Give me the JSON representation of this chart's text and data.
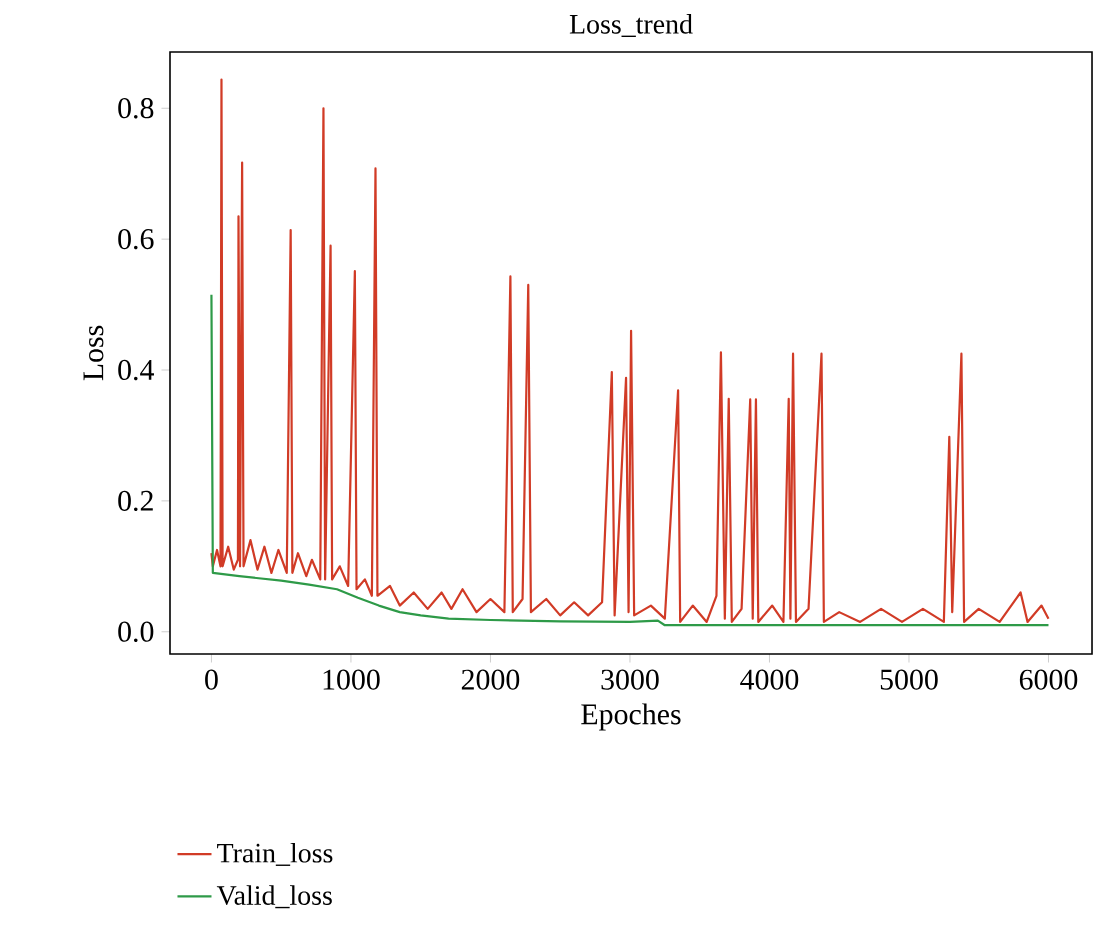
{
  "chart_data": {
    "type": "line",
    "title": "Loss_trend",
    "xlabel": "Epoches",
    "ylabel": "Loss",
    "xlim": [
      -297,
      6312
    ],
    "ylim": [
      -0.034,
      0.886
    ],
    "xticks": [
      0,
      1000,
      2000,
      3000,
      4000,
      5000,
      6000
    ],
    "yticks": [
      {
        "value": 0,
        "label": "0.0"
      },
      {
        "value": 0.2,
        "label": "0.2"
      },
      {
        "value": 0.4,
        "label": "0.4"
      },
      {
        "value": 0.6,
        "label": "0.6"
      },
      {
        "value": 0.8,
        "label": "0.8"
      }
    ],
    "legend": "bottom",
    "grid": false,
    "marker": "none",
    "line_style": "solid",
    "series": [
      {
        "name": "Train_loss",
        "color": "#d13b26",
        "x": [
          0,
          10,
          40,
          65,
          72,
          80,
          120,
          160,
          190,
          194,
          205,
          220,
          230,
          280,
          330,
          380,
          430,
          480,
          540,
          568,
          580,
          620,
          680,
          720,
          780,
          803,
          815,
          854,
          865,
          920,
          980,
          1028,
          1040,
          1100,
          1150,
          1176,
          1190,
          1280,
          1350,
          1450,
          1550,
          1650,
          1720,
          1800,
          1900,
          2000,
          2100,
          2143,
          2160,
          2230,
          2271,
          2290,
          2400,
          2500,
          2600,
          2700,
          2800,
          2870,
          2890,
          2972,
          2990,
          3008,
          3030,
          3150,
          3250,
          3345,
          3360,
          3450,
          3550,
          3620,
          3652,
          3680,
          3708,
          3730,
          3800,
          3862,
          3880,
          3903,
          3920,
          4020,
          4100,
          4138,
          4150,
          4169,
          4190,
          4280,
          4373,
          4390,
          4500,
          4650,
          4800,
          4950,
          5100,
          5250,
          5289,
          5310,
          5376,
          5395,
          5500,
          5650,
          5800,
          5850,
          5950,
          6000
        ],
        "values": [
          0.12,
          0.1,
          0.125,
          0.1,
          0.844,
          0.1,
          0.13,
          0.095,
          0.11,
          0.635,
          0.1,
          0.717,
          0.1,
          0.14,
          0.095,
          0.13,
          0.09,
          0.125,
          0.09,
          0.614,
          0.09,
          0.12,
          0.085,
          0.11,
          0.08,
          0.8,
          0.08,
          0.59,
          0.08,
          0.1,
          0.07,
          0.551,
          0.065,
          0.08,
          0.055,
          0.708,
          0.055,
          0.07,
          0.04,
          0.06,
          0.035,
          0.06,
          0.035,
          0.065,
          0.03,
          0.05,
          0.03,
          0.543,
          0.03,
          0.05,
          0.53,
          0.03,
          0.05,
          0.025,
          0.045,
          0.025,
          0.045,
          0.397,
          0.025,
          0.388,
          0.03,
          0.46,
          0.025,
          0.04,
          0.02,
          0.369,
          0.015,
          0.04,
          0.015,
          0.055,
          0.427,
          0.02,
          0.356,
          0.015,
          0.035,
          0.355,
          0.02,
          0.355,
          0.015,
          0.04,
          0.015,
          0.356,
          0.02,
          0.425,
          0.015,
          0.035,
          0.425,
          0.015,
          0.03,
          0.015,
          0.035,
          0.015,
          0.035,
          0.015,
          0.298,
          0.03,
          0.425,
          0.015,
          0.035,
          0.015,
          0.06,
          0.015,
          0.04,
          0.02
        ]
      },
      {
        "name": "Valid_loss",
        "color": "#2e9a48",
        "x": [
          0,
          10,
          200,
          500,
          700,
          900,
          1050,
          1200,
          1350,
          1500,
          1700,
          2000,
          2500,
          3000,
          3200,
          3250,
          4000,
          5000,
          6000
        ],
        "values": [
          0.515,
          0.09,
          0.085,
          0.078,
          0.072,
          0.065,
          0.052,
          0.04,
          0.03,
          0.025,
          0.02,
          0.018,
          0.016,
          0.015,
          0.017,
          0.01,
          0.01,
          0.01,
          0.01
        ]
      }
    ]
  }
}
